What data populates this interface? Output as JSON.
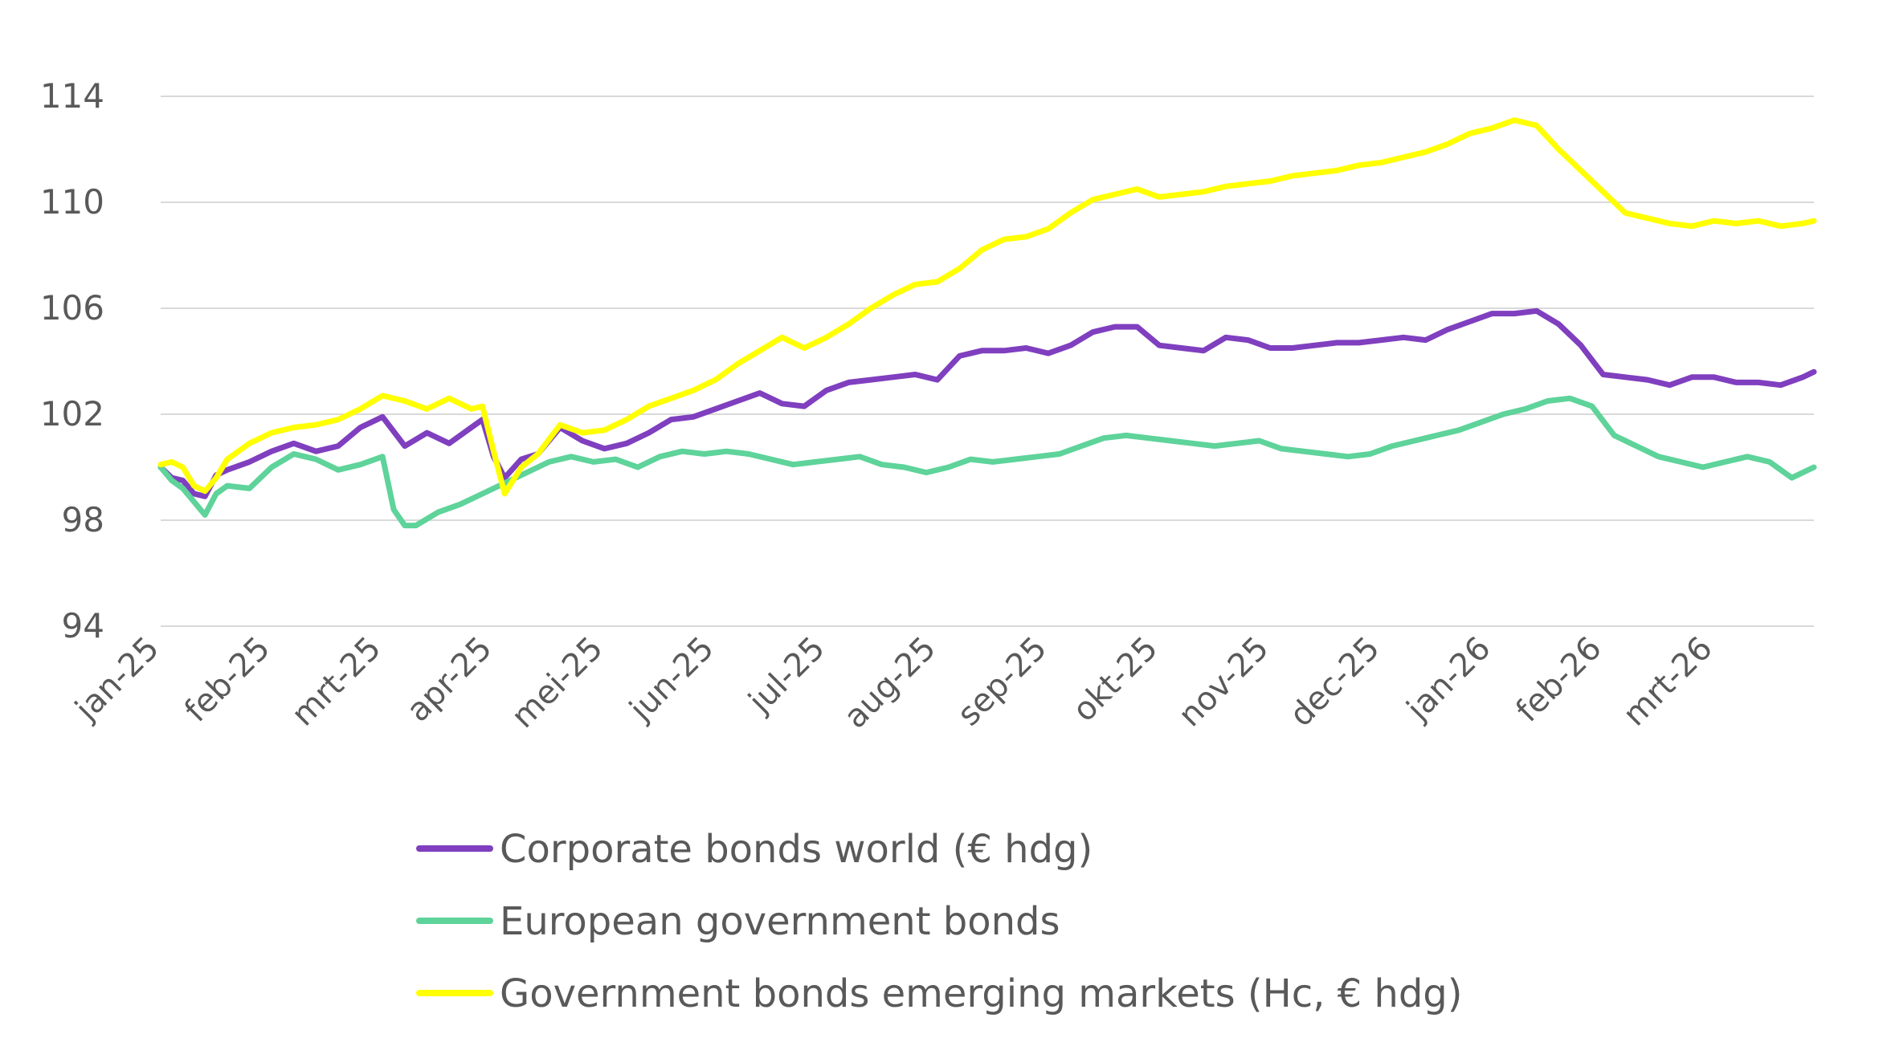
{
  "chart_data": {
    "type": "line",
    "title": "",
    "xlabel": "",
    "ylabel": "",
    "ylim": [
      94,
      114
    ],
    "yticks": [
      94,
      98,
      102,
      106,
      110,
      114
    ],
    "ytick_labels": [
      "94",
      "98",
      "102",
      "106",
      "110",
      "114"
    ],
    "grid": true,
    "legend_position": "bottom",
    "categories": [
      "jan-25",
      "feb-25",
      "mrt-25",
      "apr-25",
      "mei-25",
      "jun-25",
      "jul-25",
      "aug-25",
      "sep-25",
      "okt-25",
      "nov-25",
      "dec-25",
      "jan-26",
      "feb-26",
      "mrt-26"
    ],
    "x_months": [
      0,
      1,
      2,
      3,
      4,
      5,
      6,
      7,
      8,
      9,
      10,
      11,
      12,
      13,
      14,
      14.9
    ],
    "series": [
      {
        "name": "Corporate bonds world (€ hdg)",
        "color": "#7f3fbf",
        "x": [
          0,
          0.1,
          0.2,
          0.3,
          0.4,
          0.5,
          0.6,
          0.8,
          1.0,
          1.2,
          1.4,
          1.6,
          1.8,
          2.0,
          2.2,
          2.4,
          2.6,
          2.8,
          2.9,
          3.0,
          3.1,
          3.25,
          3.4,
          3.6,
          3.8,
          4.0,
          4.2,
          4.4,
          4.6,
          4.8,
          5.0,
          5.2,
          5.4,
          5.6,
          5.8,
          6.0,
          6.2,
          6.4,
          6.6,
          6.8,
          7.0,
          7.2,
          7.4,
          7.6,
          7.8,
          8.0,
          8.2,
          8.4,
          8.6,
          8.8,
          9.0,
          9.2,
          9.4,
          9.6,
          9.8,
          10.0,
          10.2,
          10.4,
          10.6,
          10.8,
          11.0,
          11.2,
          11.4,
          11.6,
          11.8,
          12.0,
          12.2,
          12.4,
          12.6,
          12.8,
          13.0,
          13.2,
          13.4,
          13.6,
          13.8,
          14.0,
          14.2,
          14.4,
          14.6,
          14.8,
          14.9
        ],
        "values": [
          100.0,
          99.6,
          99.5,
          99.0,
          98.9,
          99.7,
          99.9,
          100.2,
          100.6,
          100.9,
          100.6,
          100.8,
          101.5,
          101.9,
          100.8,
          101.3,
          100.9,
          101.5,
          101.8,
          100.4,
          99.6,
          100.3,
          100.5,
          101.5,
          101.0,
          100.7,
          100.9,
          101.3,
          101.8,
          101.9,
          102.2,
          102.5,
          102.8,
          102.4,
          102.3,
          102.9,
          103.2,
          103.3,
          103.4,
          103.5,
          103.3,
          104.2,
          104.4,
          104.4,
          104.5,
          104.3,
          104.6,
          105.1,
          105.3,
          105.3,
          104.6,
          104.5,
          104.4,
          104.9,
          104.8,
          104.5,
          104.5,
          104.6,
          104.7,
          104.7,
          104.8,
          104.9,
          104.8,
          105.2,
          105.5,
          105.8,
          105.8,
          105.9,
          105.4,
          104.6,
          103.5,
          103.4,
          103.3,
          103.1,
          103.4,
          103.4,
          103.2,
          103.2,
          103.1,
          103.4,
          103.6
        ]
      },
      {
        "name": "European government bonds",
        "color": "#5ed39a",
        "x": [
          0,
          0.1,
          0.2,
          0.3,
          0.4,
          0.5,
          0.6,
          0.8,
          1.0,
          1.2,
          1.4,
          1.6,
          1.8,
          2.0,
          2.1,
          2.2,
          2.3,
          2.5,
          2.7,
          2.9,
          3.1,
          3.3,
          3.5,
          3.7,
          3.9,
          4.1,
          4.3,
          4.5,
          4.7,
          4.9,
          5.1,
          5.3,
          5.5,
          5.7,
          5.9,
          6.1,
          6.3,
          6.5,
          6.7,
          6.9,
          7.1,
          7.3,
          7.5,
          7.7,
          7.9,
          8.1,
          8.3,
          8.5,
          8.7,
          8.9,
          9.1,
          9.3,
          9.5,
          9.7,
          9.9,
          10.1,
          10.3,
          10.5,
          10.7,
          10.9,
          11.1,
          11.3,
          11.5,
          11.7,
          11.9,
          12.1,
          12.3,
          12.5,
          12.7,
          12.9,
          13.1,
          13.3,
          13.5,
          13.7,
          13.9,
          14.1,
          14.3,
          14.5,
          14.7,
          14.9
        ],
        "values": [
          100.0,
          99.5,
          99.2,
          98.7,
          98.2,
          99.0,
          99.3,
          99.2,
          100.0,
          100.5,
          100.3,
          99.9,
          100.1,
          100.4,
          98.4,
          97.8,
          97.8,
          98.3,
          98.6,
          99.0,
          99.4,
          99.8,
          100.2,
          100.4,
          100.2,
          100.3,
          100.0,
          100.4,
          100.6,
          100.5,
          100.6,
          100.5,
          100.3,
          100.1,
          100.2,
          100.3,
          100.4,
          100.1,
          100.0,
          99.8,
          100.0,
          100.3,
          100.2,
          100.3,
          100.4,
          100.5,
          100.8,
          101.1,
          101.2,
          101.1,
          101.0,
          100.9,
          100.8,
          100.9,
          101.0,
          100.7,
          100.6,
          100.5,
          100.4,
          100.5,
          100.8,
          101.0,
          101.2,
          101.4,
          101.7,
          102.0,
          102.2,
          102.5,
          102.6,
          102.3,
          101.2,
          100.8,
          100.4,
          100.2,
          100.0,
          100.2,
          100.4,
          100.2,
          99.6,
          100.0
        ]
      },
      {
        "name": "Government bonds emerging markets (Hc, € hdg)",
        "color": "#ffff00",
        "x": [
          0,
          0.1,
          0.2,
          0.3,
          0.4,
          0.5,
          0.6,
          0.8,
          1.0,
          1.2,
          1.4,
          1.6,
          1.8,
          2.0,
          2.2,
          2.4,
          2.6,
          2.8,
          2.9,
          3.0,
          3.1,
          3.25,
          3.4,
          3.6,
          3.8,
          4.0,
          4.2,
          4.4,
          4.6,
          4.8,
          5.0,
          5.2,
          5.4,
          5.6,
          5.8,
          6.0,
          6.2,
          6.4,
          6.6,
          6.8,
          7.0,
          7.2,
          7.4,
          7.6,
          7.8,
          8.0,
          8.2,
          8.4,
          8.6,
          8.8,
          9.0,
          9.2,
          9.4,
          9.6,
          9.8,
          10.0,
          10.2,
          10.4,
          10.6,
          10.8,
          11.0,
          11.2,
          11.4,
          11.6,
          11.8,
          12.0,
          12.2,
          12.4,
          12.6,
          12.8,
          13.0,
          13.2,
          13.4,
          13.6,
          13.8,
          14.0,
          14.2,
          14.4,
          14.6,
          14.8,
          14.9
        ],
        "values": [
          100.1,
          100.2,
          100.0,
          99.3,
          99.1,
          99.6,
          100.3,
          100.9,
          101.3,
          101.5,
          101.6,
          101.8,
          102.2,
          102.7,
          102.5,
          102.2,
          102.6,
          102.2,
          102.3,
          100.6,
          99.0,
          100.0,
          100.5,
          101.6,
          101.3,
          101.4,
          101.8,
          102.3,
          102.6,
          102.9,
          103.3,
          103.9,
          104.4,
          104.9,
          104.5,
          104.9,
          105.4,
          106.0,
          106.5,
          106.9,
          107.0,
          107.5,
          108.2,
          108.6,
          108.7,
          109.0,
          109.6,
          110.1,
          110.3,
          110.5,
          110.2,
          110.3,
          110.4,
          110.6,
          110.7,
          110.8,
          111.0,
          111.1,
          111.2,
          111.4,
          111.5,
          111.7,
          111.9,
          112.2,
          112.6,
          112.8,
          113.1,
          112.9,
          112.0,
          111.2,
          110.4,
          109.6,
          109.4,
          109.2,
          109.1,
          109.3,
          109.2,
          109.3,
          109.1,
          109.2,
          109.3
        ]
      }
    ]
  }
}
